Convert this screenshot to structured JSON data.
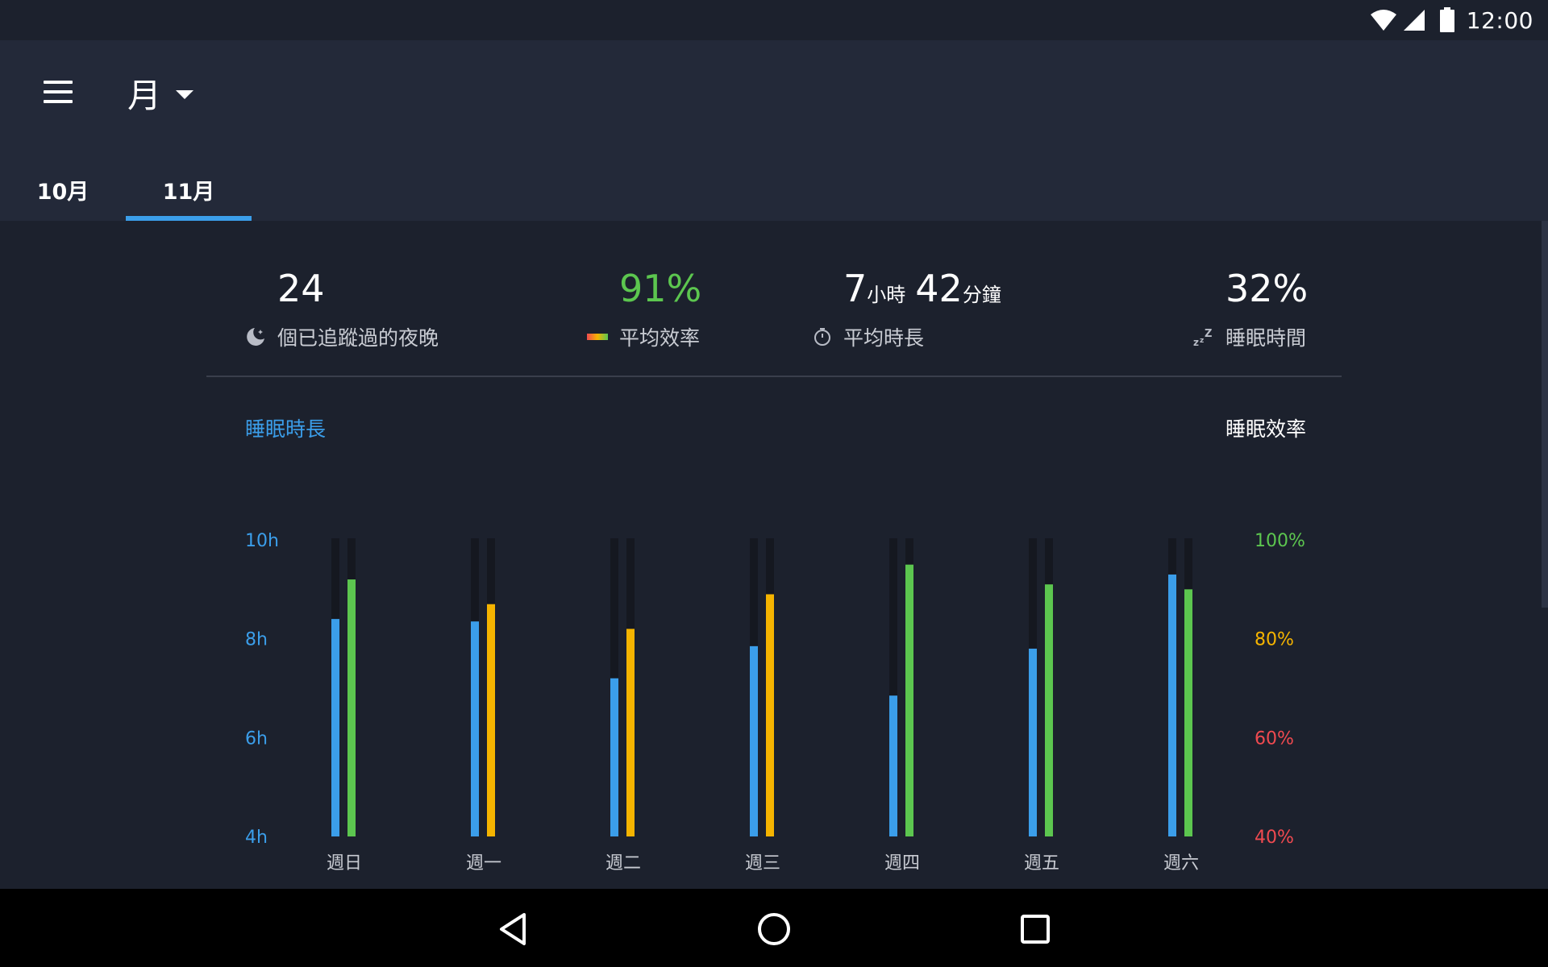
{
  "status_bar": {
    "time": "12:00"
  },
  "app_bar": {
    "period_label": "月",
    "tabs": [
      {
        "label": "10月",
        "active": false
      },
      {
        "label": "11月",
        "active": true
      }
    ]
  },
  "stats": {
    "nights": {
      "value": "24",
      "label": "個已追蹤過的夜晚",
      "icon": "moon-icon"
    },
    "efficiency": {
      "value": "91%",
      "label": "平均效率",
      "icon": "efficiency-gradient-icon",
      "color": "#5cc64f"
    },
    "duration": {
      "hours": "7",
      "hours_unit": "小時",
      "minutes": "42",
      "minutes_unit": "分鐘",
      "label": "平均時長",
      "icon": "clock-icon"
    },
    "sleep_time": {
      "value": "32%",
      "label": "睡眠時間",
      "icon": "zzz-icon"
    }
  },
  "chart_legend": {
    "left": "睡眠時長",
    "right": "睡眠效率"
  },
  "chart_data": {
    "type": "bar",
    "categories": [
      "週日",
      "週一",
      "週二",
      "週三",
      "週四",
      "週五",
      "週六"
    ],
    "series": [
      {
        "name": "睡眠時長",
        "axis": "left",
        "unit": "h",
        "color": "#3b9eea",
        "values": [
          8.4,
          8.35,
          7.2,
          7.85,
          6.85,
          7.8,
          9.3
        ]
      },
      {
        "name": "睡眠效率",
        "axis": "right",
        "unit": "%",
        "values": [
          92,
          87,
          82,
          89,
          95,
          91,
          90
        ]
      }
    ],
    "y_left": {
      "ticks": [
        "10h",
        "8h",
        "6h",
        "4h"
      ],
      "ylim": [
        4,
        10
      ],
      "color": "#3b9eea"
    },
    "y_right": {
      "ticks": [
        {
          "label": "100%",
          "color": "#5cc64f"
        },
        {
          "label": "80%",
          "color": "#f5b400"
        },
        {
          "label": "60%",
          "color": "#f04a50"
        },
        {
          "label": "40%",
          "color": "#f04a50"
        }
      ],
      "ylim": [
        40,
        100
      ]
    },
    "efficiency_colors": {
      "high": "#5cc64f",
      "medium": "#f5b400",
      "threshold": 90
    },
    "track_color": "#151820",
    "grid": false
  }
}
